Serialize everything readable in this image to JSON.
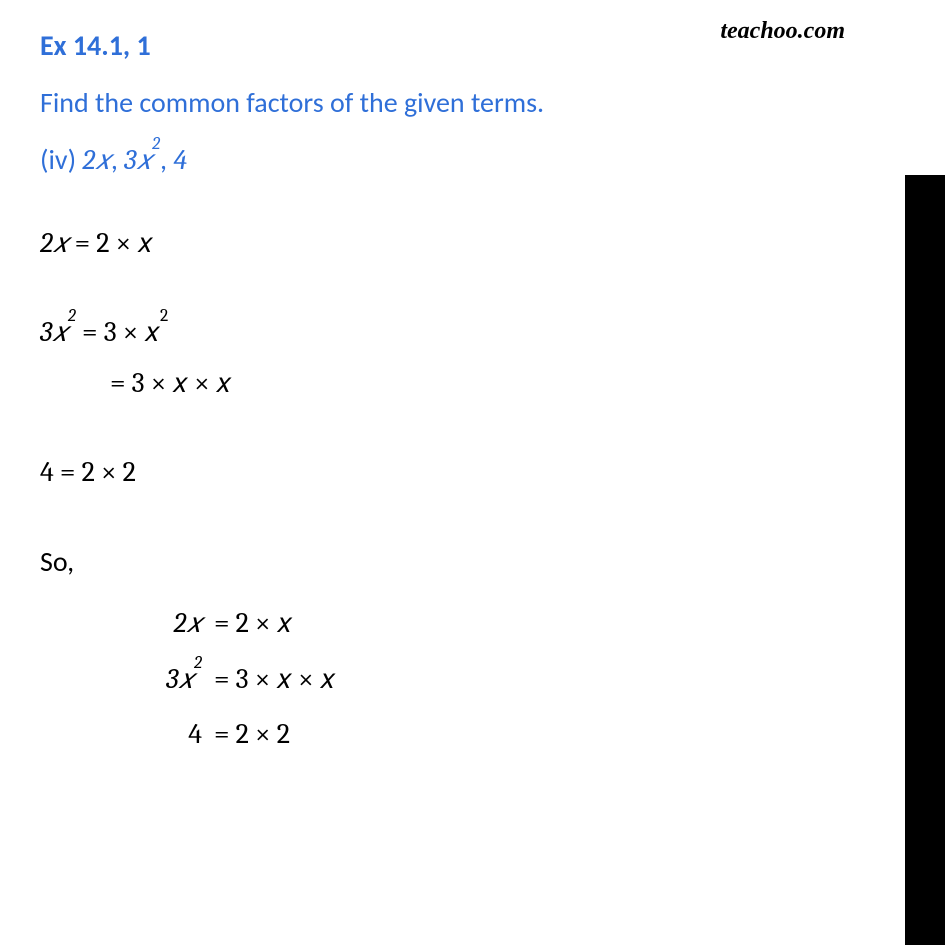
{
  "brand": "teachoo.com",
  "colors": {
    "accent": "#2f6fd8",
    "text": "#000000",
    "stripe_top": "#ffffff",
    "stripe_bottom": "#000000",
    "page_bg": "#ffffff"
  },
  "typography": {
    "heading_fontsize_pt": 21,
    "body_fontsize_pt": 21,
    "brand_fontsize_pt": 18
  },
  "heading": "Ex 14.1, 1",
  "prompt": "Find the common factors of the given terms.",
  "sub_label": "(iv) ",
  "terms_plain": "2x, 3x², 4",
  "lines": {
    "l1_lhs": "2𝑥",
    "l1_rhs": " = 2 × 𝑥",
    "l2_lhs": "3𝑥",
    "l2_exp": "2",
    "l2_rhs": " = 3 × 𝑥",
    "l2b": "= 3 × 𝑥 × 𝑥",
    "l3": "4  = 2 ×  2",
    "so": "So,",
    "s1_l": "2𝑥",
    "s1_r": "= 2 × 𝑥",
    "s2_l_base": "3𝑥",
    "s2_l_exp": "2",
    "s2_r": "= 3 × 𝑥 × 𝑥",
    "s3_l": "4",
    "s3_r": "= 2 × 2"
  }
}
